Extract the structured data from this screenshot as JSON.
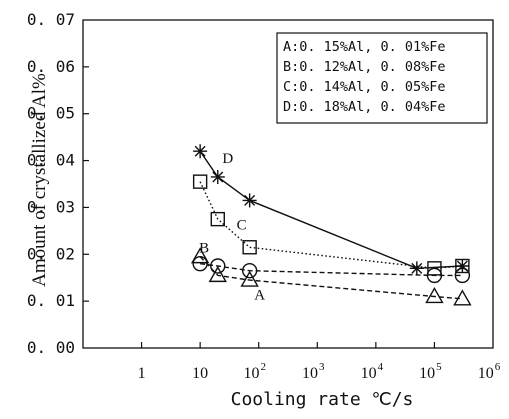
{
  "chart_data": {
    "type": "line",
    "xlabel": "Cooling rate ℃/s",
    "ylabel": "Amount of crystallized Al%",
    "x_scale": "log",
    "xlim": [
      0.1,
      1000000
    ],
    "ylim": [
      0.0,
      0.07
    ],
    "y_ticks": [
      "0. 00",
      "0. 01",
      "0. 02",
      "0. 03",
      "0. 04",
      "0. 05",
      "0. 06",
      "0. 07"
    ],
    "x_ticks": [
      {
        "value": 1,
        "base": "1",
        "exp": ""
      },
      {
        "value": 10,
        "base": "10",
        "exp": ""
      },
      {
        "value": 100,
        "base": "10",
        "exp": "2"
      },
      {
        "value": 1000,
        "base": "10",
        "exp": "3"
      },
      {
        "value": 10000,
        "base": "10",
        "exp": "4"
      },
      {
        "value": 100000,
        "base": "10",
        "exp": "5"
      },
      {
        "value": 1000000,
        "base": "10",
        "exp": "6"
      }
    ],
    "grid": false,
    "legend_placement": "top-right",
    "legend": [
      "A:0. 15%Al, 0. 01%Fe",
      "B:0. 12%Al, 0. 08%Fe",
      "C:0. 14%Al, 0. 05%Fe",
      "D:0. 18%Al, 0. 04%Fe"
    ],
    "series": [
      {
        "name": "A",
        "marker": "triangle",
        "line": "dashed",
        "x": [
          10,
          20,
          70,
          100000,
          300000
        ],
        "y": [
          0.0195,
          0.0155,
          0.0145,
          0.011,
          0.0105
        ]
      },
      {
        "name": "B",
        "marker": "circle",
        "line": "dashed",
        "x": [
          10,
          20,
          70,
          100000,
          300000
        ],
        "y": [
          0.018,
          0.0175,
          0.0165,
          0.0155,
          0.0155
        ]
      },
      {
        "name": "C",
        "marker": "square",
        "line": "dotted",
        "x": [
          10,
          20,
          70,
          100000,
          300000
        ],
        "y": [
          0.0355,
          0.0275,
          0.0215,
          0.017,
          0.0175
        ]
      },
      {
        "name": "D",
        "marker": "star",
        "line": "solid",
        "x": [
          10,
          20,
          70,
          50000,
          300000
        ],
        "y": [
          0.042,
          0.0365,
          0.0315,
          0.017,
          0.0175
        ]
      }
    ]
  }
}
